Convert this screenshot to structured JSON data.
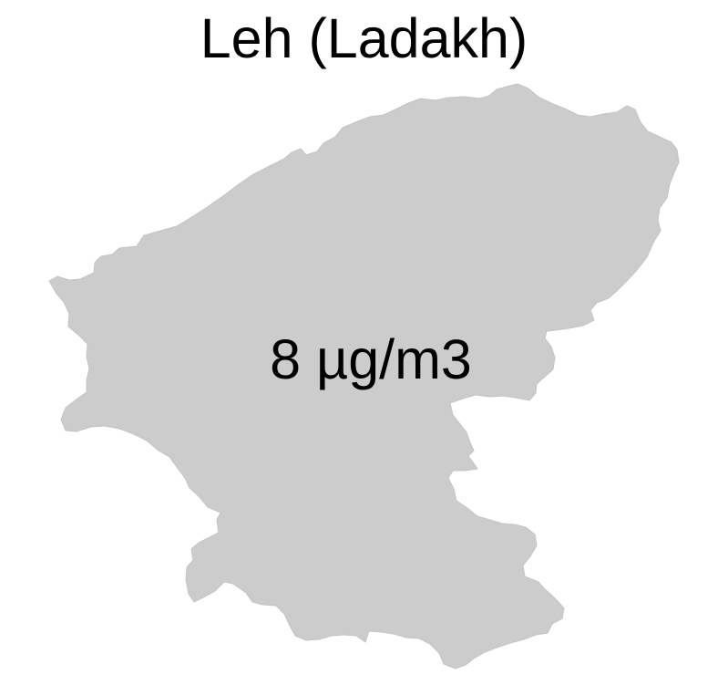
{
  "map": {
    "title": "Leh (Ladakh)",
    "region_value_label": "8 µg/m3",
    "region_fill": "#cccccc",
    "background": "#ffffff"
  }
}
